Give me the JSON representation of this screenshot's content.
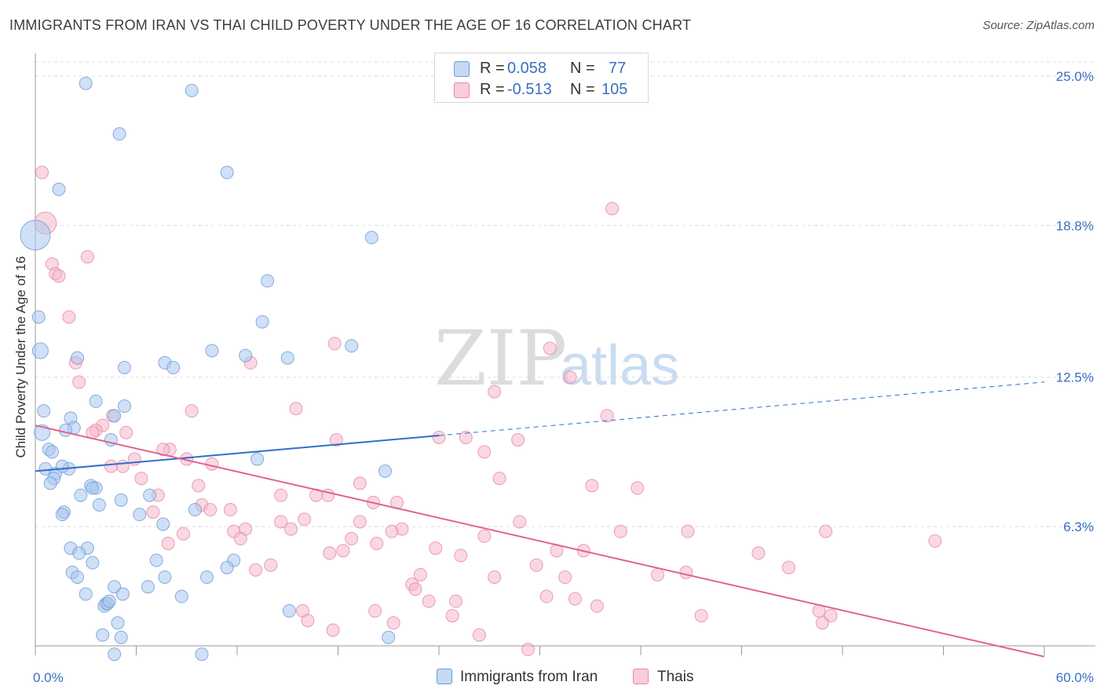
{
  "header": {
    "title": "IMMIGRANTS FROM IRAN VS THAI CHILD POVERTY UNDER THE AGE OF 16 CORRELATION CHART",
    "source": "Source: ZipAtlas.com"
  },
  "watermark": {
    "zip": "ZIP",
    "atlas": "atlas"
  },
  "legend": {
    "rows": [
      {
        "r_label": "R =",
        "r_value": "0.058",
        "n_label": "N =",
        "n_value": "77"
      },
      {
        "r_label": "R =",
        "r_value": "-0.513",
        "n_label": "N =",
        "n_value": "105"
      }
    ],
    "bottom": [
      "Immigrants from Iran",
      "Thais"
    ]
  },
  "colors": {
    "blue_fill": "#a9c6ee",
    "blue_stroke": "#6d9ad8",
    "blue_line": "#2f6fcc",
    "pink_fill": "#f5b8cb",
    "pink_stroke": "#e686a6",
    "pink_line": "#e0628f",
    "tick_label": "#3a6fc0",
    "grid": "#dddddd"
  },
  "chart_data": {
    "type": "scatter",
    "title": "IMMIGRANTS FROM IRAN VS THAI CHILD POVERTY UNDER THE AGE OF 16 CORRELATION CHART",
    "xlabel": "",
    "ylabel": "Child Poverty Under the Age of 16",
    "xlim": [
      0,
      60
    ],
    "ylim": [
      0,
      25.9
    ],
    "x_tick_labels": [
      "0.0%",
      "60.0%"
    ],
    "y_ticks": [
      6.3,
      12.5,
      18.8,
      25.0
    ],
    "y_tick_labels": [
      "6.3%",
      "12.5%",
      "18.8%",
      "25.0%"
    ],
    "grid": "horizontal dashed",
    "series": [
      {
        "name": "Immigrants from Iran",
        "stats": {
          "R": 0.058,
          "N": 77
        },
        "trend": {
          "x0": 0,
          "y0": 8.6,
          "x1": 60,
          "y1": 12.3,
          "solid_until": 24
        },
        "points": [
          [
            3.0,
            24.7
          ],
          [
            9.3,
            24.4
          ],
          [
            5.0,
            22.6
          ],
          [
            11.4,
            21.0
          ],
          [
            1.4,
            20.3
          ],
          [
            0,
            18.4
          ],
          [
            20.0,
            18.3
          ],
          [
            13.8,
            16.5
          ],
          [
            0.2,
            15.0
          ],
          [
            13.5,
            14.8
          ],
          [
            18.8,
            13.8
          ],
          [
            0.3,
            13.6
          ],
          [
            10.5,
            13.6
          ],
          [
            12.5,
            13.4
          ],
          [
            2.5,
            13.3
          ],
          [
            15.0,
            13.3
          ],
          [
            7.7,
            13.1
          ],
          [
            5.3,
            12.9
          ],
          [
            8.2,
            12.9
          ],
          [
            3.6,
            11.5
          ],
          [
            0.5,
            11.1
          ],
          [
            5.3,
            11.3
          ],
          [
            4.7,
            10.9
          ],
          [
            2.1,
            10.8
          ],
          [
            0.4,
            10.2
          ],
          [
            2.3,
            10.4
          ],
          [
            1.8,
            10.3
          ],
          [
            4.5,
            9.9
          ],
          [
            0.8,
            9.5
          ],
          [
            1.0,
            9.4
          ],
          [
            13.2,
            9.1
          ],
          [
            0.6,
            8.7
          ],
          [
            1.2,
            8.5
          ],
          [
            2.0,
            8.7
          ],
          [
            1.6,
            8.8
          ],
          [
            20.8,
            8.6
          ],
          [
            1.1,
            8.3
          ],
          [
            0.9,
            8.1
          ],
          [
            3.3,
            8.0
          ],
          [
            3.6,
            7.9
          ],
          [
            3.4,
            7.9
          ],
          [
            2.7,
            7.6
          ],
          [
            6.8,
            7.6
          ],
          [
            5.1,
            7.4
          ],
          [
            3.8,
            7.2
          ],
          [
            1.7,
            6.9
          ],
          [
            1.6,
            6.8
          ],
          [
            9.5,
            7.0
          ],
          [
            6.2,
            6.8
          ],
          [
            7.6,
            6.4
          ],
          [
            2.1,
            5.4
          ],
          [
            3.1,
            5.4
          ],
          [
            2.6,
            5.2
          ],
          [
            11.8,
            4.9
          ],
          [
            7.2,
            4.9
          ],
          [
            3.4,
            4.8
          ],
          [
            2.2,
            4.4
          ],
          [
            10.2,
            4.2
          ],
          [
            11.4,
            4.6
          ],
          [
            2.5,
            4.2
          ],
          [
            7.7,
            4.2
          ],
          [
            4.7,
            3.8
          ],
          [
            6.7,
            3.8
          ],
          [
            3.0,
            3.5
          ],
          [
            5.2,
            3.5
          ],
          [
            8.7,
            3.4
          ],
          [
            4.2,
            3.1
          ],
          [
            4.1,
            3.0
          ],
          [
            4.3,
            3.1
          ],
          [
            15.1,
            2.8
          ],
          [
            4.9,
            2.3
          ],
          [
            4.0,
            1.8
          ],
          [
            5.1,
            1.7
          ],
          [
            21.0,
            1.7
          ],
          [
            4.7,
            1.0
          ],
          [
            9.9,
            1.0
          ],
          [
            4.4,
            3.2
          ]
        ],
        "sizes": {
          "0,18.4": "xl",
          "0.2,15.0": "l",
          "0.3,13.6": "m",
          "0.4,10.2": "m"
        }
      },
      {
        "name": "Thais",
        "stats": {
          "R": -0.513,
          "N": 105
        },
        "trend": {
          "x0": 0,
          "y0": 10.5,
          "x1": 60,
          "y1": 0.9
        },
        "points": [
          [
            0.4,
            21.0
          ],
          [
            0.6,
            18.9
          ],
          [
            34.3,
            19.5
          ],
          [
            1.0,
            17.2
          ],
          [
            3.1,
            17.5
          ],
          [
            1.2,
            16.8
          ],
          [
            1.4,
            16.7
          ],
          [
            2.0,
            15.0
          ],
          [
            30.6,
            13.7
          ],
          [
            12.8,
            13.1
          ],
          [
            2.4,
            13.1
          ],
          [
            2.6,
            12.3
          ],
          [
            9.3,
            11.1
          ],
          [
            15.5,
            11.2
          ],
          [
            34.0,
            10.9
          ],
          [
            4.6,
            10.9
          ],
          [
            4.0,
            10.5
          ],
          [
            3.6,
            10.3
          ],
          [
            5.4,
            10.2
          ],
          [
            3.4,
            10.2
          ],
          [
            17.9,
            9.9
          ],
          [
            24.0,
            10.0
          ],
          [
            25.6,
            10.0
          ],
          [
            28.7,
            9.9
          ],
          [
            8.0,
            9.5
          ],
          [
            7.6,
            9.5
          ],
          [
            26.7,
            9.4
          ],
          [
            5.9,
            9.1
          ],
          [
            9.0,
            9.1
          ],
          [
            10.5,
            8.9
          ],
          [
            5.2,
            8.8
          ],
          [
            4.5,
            8.8
          ],
          [
            6.3,
            8.3
          ],
          [
            27.6,
            8.3
          ],
          [
            19.3,
            8.1
          ],
          [
            9.7,
            8.0
          ],
          [
            33.1,
            8.0
          ],
          [
            35.8,
            7.9
          ],
          [
            17.4,
            7.6
          ],
          [
            14.6,
            7.6
          ],
          [
            16.7,
            7.6
          ],
          [
            7.3,
            7.6
          ],
          [
            21.5,
            7.3
          ],
          [
            20.1,
            7.3
          ],
          [
            9.9,
            7.2
          ],
          [
            10.4,
            7.0
          ],
          [
            11.6,
            7.0
          ],
          [
            7.0,
            6.9
          ],
          [
            16.0,
            6.6
          ],
          [
            14.6,
            6.5
          ],
          [
            28.8,
            6.5
          ],
          [
            19.3,
            6.5
          ],
          [
            21.8,
            6.2
          ],
          [
            12.5,
            6.2
          ],
          [
            11.8,
            6.1
          ],
          [
            15.2,
            6.2
          ],
          [
            21.2,
            6.1
          ],
          [
            8.8,
            6.0
          ],
          [
            34.8,
            6.1
          ],
          [
            38.8,
            6.1
          ],
          [
            47.0,
            6.1
          ],
          [
            26.7,
            5.9
          ],
          [
            18.8,
            5.8
          ],
          [
            12.2,
            5.8
          ],
          [
            20.3,
            5.6
          ],
          [
            7.9,
            5.6
          ],
          [
            53.5,
            5.7
          ],
          [
            23.8,
            5.4
          ],
          [
            31.0,
            5.3
          ],
          [
            32.6,
            5.3
          ],
          [
            43.0,
            5.2
          ],
          [
            17.5,
            5.2
          ],
          [
            18.3,
            5.3
          ],
          [
            25.3,
            5.1
          ],
          [
            29.8,
            4.7
          ],
          [
            14.0,
            4.7
          ],
          [
            44.8,
            4.6
          ],
          [
            13.1,
            4.5
          ],
          [
            37.0,
            4.3
          ],
          [
            38.7,
            4.4
          ],
          [
            22.9,
            4.3
          ],
          [
            27.3,
            4.2
          ],
          [
            31.5,
            4.2
          ],
          [
            22.4,
            3.9
          ],
          [
            22.6,
            3.7
          ],
          [
            30.4,
            3.4
          ],
          [
            32.1,
            3.3
          ],
          [
            23.4,
            3.2
          ],
          [
            25.0,
            3.2
          ],
          [
            33.4,
            3.0
          ],
          [
            20.2,
            2.8
          ],
          [
            15.9,
            2.8
          ],
          [
            46.6,
            2.8
          ],
          [
            39.6,
            2.6
          ],
          [
            47.3,
            2.6
          ],
          [
            24.8,
            2.6
          ],
          [
            16.2,
            2.4
          ],
          [
            21.3,
            2.3
          ],
          [
            46.8,
            2.3
          ],
          [
            17.7,
            2.0
          ],
          [
            26.4,
            1.8
          ],
          [
            29.3,
            1.2
          ],
          [
            27.3,
            11.9
          ],
          [
            17.8,
            13.9
          ],
          [
            31.8,
            12.5
          ]
        ],
        "sizes": {
          "0.4,21.0": "xl",
          "0.6,18.9": "l",
          "1.0,17.2": "l"
        }
      }
    ]
  }
}
